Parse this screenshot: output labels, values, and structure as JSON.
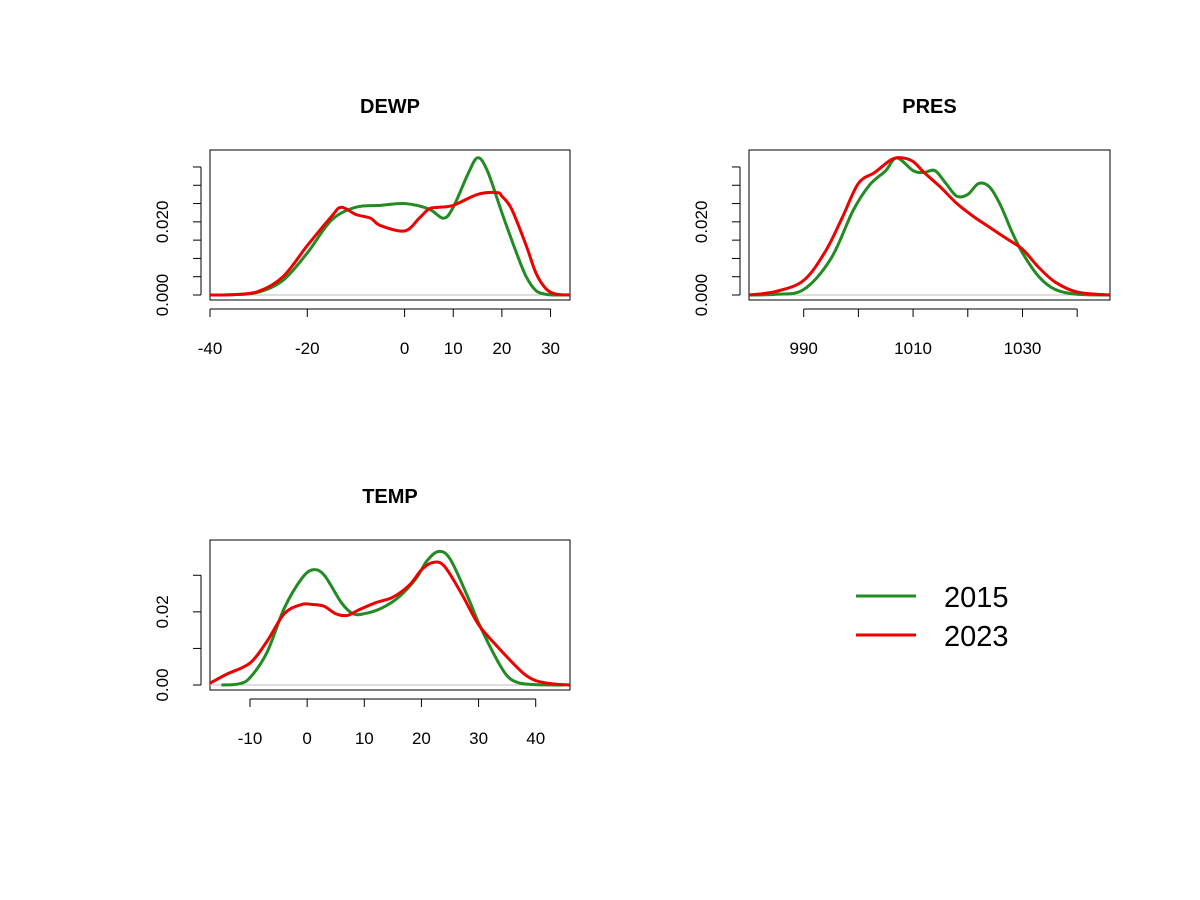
{
  "colors": {
    "2015": "#228B22",
    "2023": "#EE0000",
    "baseline": "#BEBEBE",
    "axis": "#000000"
  },
  "legend": {
    "position": "bottom-right",
    "items": [
      {
        "label": "2015",
        "color": "#228B22"
      },
      {
        "label": "2023",
        "color": "#EE0000"
      }
    ]
  },
  "chart_data": [
    {
      "type": "line",
      "title": "DEWP",
      "xlim": [
        -40,
        34
      ],
      "ylim": [
        0,
        0.038
      ],
      "grid": false,
      "x_ticks": [
        -40,
        -20,
        0,
        10,
        20,
        30
      ],
      "y_ticks": [
        0,
        0.005,
        0.01,
        0.015,
        0.02,
        0.025,
        0.03,
        0.035
      ],
      "y_tick_labels": [
        {
          "value": 0.0,
          "label": "0.000"
        },
        {
          "value": 0.02,
          "label": "0.020"
        }
      ],
      "series": [
        {
          "name": "2015",
          "x": [
            -40,
            -35,
            -30,
            -25,
            -20,
            -15,
            -10,
            -5,
            0,
            5,
            8,
            10,
            13,
            15,
            17,
            20,
            23,
            25,
            27,
            29,
            31,
            34
          ],
          "y": [
            0.0,
            0.0001,
            0.0008,
            0.004,
            0.0115,
            0.0205,
            0.024,
            0.0245,
            0.025,
            0.0235,
            0.021,
            0.024,
            0.033,
            0.0375,
            0.034,
            0.0225,
            0.0115,
            0.005,
            0.0012,
            0.0002,
            0.0,
            0.0
          ]
        },
        {
          "name": "2023",
          "x": [
            -40,
            -35,
            -30,
            -25,
            -20,
            -15,
            -13,
            -10,
            -7,
            -5,
            0,
            3,
            5,
            7,
            10,
            15,
            19,
            20,
            22,
            25,
            27,
            29,
            31,
            34
          ],
          "y": [
            0.0,
            0.0001,
            0.001,
            0.005,
            0.0135,
            0.0215,
            0.024,
            0.022,
            0.021,
            0.019,
            0.0175,
            0.021,
            0.0235,
            0.024,
            0.0245,
            0.0275,
            0.028,
            0.027,
            0.0235,
            0.0135,
            0.006,
            0.0018,
            0.0003,
            0.0
          ]
        }
      ]
    },
    {
      "type": "line",
      "title": "PRES",
      "xlim": [
        980,
        1046
      ],
      "ylim": [
        0,
        0.038
      ],
      "grid": false,
      "x_ticks": [
        990,
        1000,
        1010,
        1020,
        1030,
        1040
      ],
      "x_tick_labels": [
        990,
        1010,
        1030
      ],
      "y_ticks": [
        0,
        0.005,
        0.01,
        0.015,
        0.02,
        0.025,
        0.03,
        0.035
      ],
      "y_tick_labels": [
        {
          "value": 0.0,
          "label": "0.000"
        },
        {
          "value": 0.02,
          "label": "0.020"
        }
      ],
      "series": [
        {
          "name": "2015",
          "x": [
            980,
            985,
            990,
            995,
            999,
            1002,
            1005,
            1007,
            1010,
            1012,
            1014,
            1016,
            1018,
            1020,
            1022,
            1024,
            1026,
            1028,
            1030,
            1033,
            1036,
            1040,
            1046
          ],
          "y": [
            0.0,
            0.0002,
            0.0015,
            0.01,
            0.023,
            0.03,
            0.034,
            0.0375,
            0.034,
            0.0335,
            0.034,
            0.0305,
            0.027,
            0.0275,
            0.0305,
            0.0295,
            0.0245,
            0.0175,
            0.0115,
            0.005,
            0.0015,
            0.0002,
            0.0
          ]
        },
        {
          "name": "2023",
          "x": [
            980,
            985,
            990,
            994,
            997,
            1000,
            1003,
            1006,
            1008,
            1010,
            1012,
            1015,
            1018,
            1021,
            1024,
            1027,
            1030,
            1033,
            1036,
            1040,
            1046
          ],
          "y": [
            0.0,
            0.001,
            0.004,
            0.012,
            0.021,
            0.0305,
            0.0335,
            0.037,
            0.0375,
            0.0365,
            0.0335,
            0.0295,
            0.025,
            0.0215,
            0.0185,
            0.0155,
            0.0125,
            0.0075,
            0.0035,
            0.0008,
            0.0
          ]
        }
      ]
    },
    {
      "type": "line",
      "title": "TEMP",
      "xlim": [
        -17,
        46
      ],
      "ylim": [
        0,
        0.038
      ],
      "grid": false,
      "x_ticks": [
        -10,
        0,
        10,
        20,
        30,
        40
      ],
      "y_ticks": [
        0,
        0.01,
        0.02,
        0.03
      ],
      "y_tick_labels": [
        {
          "value": 0.0,
          "label": "0.00"
        },
        {
          "value": 0.02,
          "label": "0.02"
        }
      ],
      "series": [
        {
          "name": "2015",
          "x": [
            -15,
            -12,
            -10,
            -7,
            -4,
            -1,
            1,
            3,
            6,
            8,
            10,
            13,
            16,
            19,
            21,
            23,
            25,
            28,
            30,
            33,
            35,
            37,
            40,
            45
          ],
          "y": [
            0.0,
            0.0003,
            0.002,
            0.009,
            0.021,
            0.029,
            0.0315,
            0.03,
            0.0225,
            0.0195,
            0.0195,
            0.021,
            0.024,
            0.029,
            0.034,
            0.0365,
            0.0345,
            0.0245,
            0.017,
            0.0075,
            0.0025,
            0.0006,
            0.0001,
            0.0
          ]
        },
        {
          "name": "2023",
          "x": [
            -17,
            -14,
            -10,
            -7,
            -4,
            -1,
            1,
            3,
            5,
            7,
            9,
            12,
            15,
            18,
            20,
            22,
            24,
            27,
            30,
            33,
            36,
            38,
            40,
            43,
            46
          ],
          "y": [
            0.0005,
            0.003,
            0.006,
            0.012,
            0.0195,
            0.022,
            0.022,
            0.0215,
            0.0195,
            0.019,
            0.0205,
            0.0225,
            0.024,
            0.0275,
            0.0315,
            0.0335,
            0.0325,
            0.025,
            0.0165,
            0.011,
            0.006,
            0.003,
            0.0012,
            0.0003,
            0.0
          ]
        }
      ]
    }
  ]
}
